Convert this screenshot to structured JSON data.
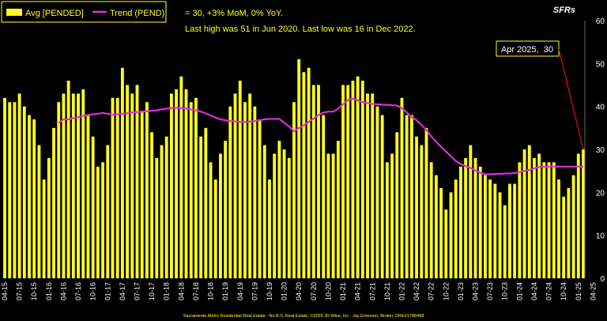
{
  "chart_data": {
    "type": "bar",
    "series": [
      {
        "name": "Avg [PENDED]",
        "type": "bar",
        "color": "#FFFF1E",
        "values": [
          42,
          41,
          41,
          43,
          40,
          38,
          37,
          31,
          23,
          28,
          35,
          41,
          43,
          46,
          43,
          43,
          44,
          38,
          33,
          26,
          27,
          31,
          42,
          42,
          49,
          45,
          43,
          45,
          39,
          41,
          34,
          28,
          31,
          33,
          43,
          44,
          47,
          44,
          41,
          42,
          33,
          35,
          27,
          23,
          29,
          32,
          40,
          43,
          46,
          41,
          43,
          40,
          37,
          31,
          23,
          29,
          32,
          30,
          28,
          41,
          51,
          48,
          49,
          45,
          45,
          38,
          29,
          29,
          32,
          45,
          45,
          46,
          47,
          46,
          43,
          43,
          40,
          38,
          27,
          29,
          34,
          42,
          38,
          38,
          33,
          31,
          35,
          27,
          24,
          21,
          16,
          20,
          23,
          26,
          28,
          31,
          28,
          26,
          24,
          23,
          22,
          20,
          17,
          22,
          22,
          27,
          30,
          31,
          28,
          29,
          27,
          27,
          27,
          23,
          19,
          21,
          24,
          29,
          30
        ]
      },
      {
        "name": "Trend (PEND)",
        "type": "line",
        "color": "#E02CE0",
        "values": [
          null,
          null,
          null,
          null,
          null,
          null,
          null,
          null,
          null,
          null,
          null,
          36.2,
          37,
          37,
          37.3,
          37.5,
          37.8,
          38,
          38.2,
          38.3,
          38.5,
          38.3,
          38.1,
          38.2,
          38.3,
          38.4,
          38.6,
          38.7,
          38.8,
          38.9,
          39,
          39.1,
          39.3,
          39.5,
          39.6,
          39.7,
          39.6,
          39.5,
          39.3,
          39.1,
          38.8,
          38.4,
          37.9,
          37.4,
          37,
          36.8,
          36.6,
          36.5,
          36.4,
          36.4,
          36.5,
          36.6,
          36.8,
          37,
          37.1,
          37.1,
          37.1,
          36.2,
          35.3,
          34.2,
          35,
          35.6,
          36.4,
          37.2,
          38,
          38.6,
          38.8,
          38.8,
          39.5,
          40.5,
          41.5,
          41.8,
          41.4,
          41,
          40.8,
          40.6,
          40.5,
          40.4,
          40.4,
          40.3,
          40.2,
          39.6,
          38.6,
          37.5,
          36.8,
          35.7,
          34.5,
          33,
          31.8,
          30.6,
          29.5,
          28.4,
          27.3,
          26.6,
          26.1,
          25.7,
          25.1,
          24.6,
          24.2,
          24.2,
          24.3,
          24.3,
          24.4,
          24.4,
          24.5,
          24.7,
          25,
          25.2,
          25.6,
          25.9,
          26,
          26,
          26,
          26,
          26,
          26,
          26,
          26,
          26
        ]
      }
    ],
    "x_tick_labels": [
      "04-15",
      "07-15",
      "10-15",
      "01-16",
      "04-16",
      "07-16",
      "10-16",
      "01-17",
      "04-17",
      "07-17",
      "10-17",
      "01-18",
      "04-18",
      "07-18",
      "10-18",
      "01-19",
      "04-19",
      "07-19",
      "10-19",
      "01-20",
      "04-20",
      "07-20",
      "10-20",
      "01-21",
      "04-21",
      "07-21",
      "10-21",
      "01-22",
      "04-22",
      "07-22",
      "10-22",
      "01-23",
      "04-23",
      "07-23",
      "10-23",
      "01-24",
      "04-24",
      "07-24",
      "10-24",
      "01-25",
      "04-25"
    ],
    "y_ticks": [
      0,
      10,
      20,
      30,
      40,
      50,
      60
    ],
    "ylim": [
      0,
      60
    ],
    "grid": false,
    "legend_position": "top-left",
    "stats_line1": "= 30, +3% MoM, 0% YoY.",
    "stats_line2": "Last high was 51 in Jun 2020. Last low was 16 in Dec 2022.",
    "corner_label": "SFRs",
    "callout": "Apr 2025,  30",
    "footer": "Sacramento Metro Residential Real Estate - No B.S. Real Estate, ©2025 JD Wise, Inc - Jay Emerson, Broker, DRE#1788498",
    "colors": {
      "background": "#000000",
      "text": "#FFFF1E",
      "axis_text": "#FFFFFF",
      "callout_arrow": "#E01010"
    }
  }
}
